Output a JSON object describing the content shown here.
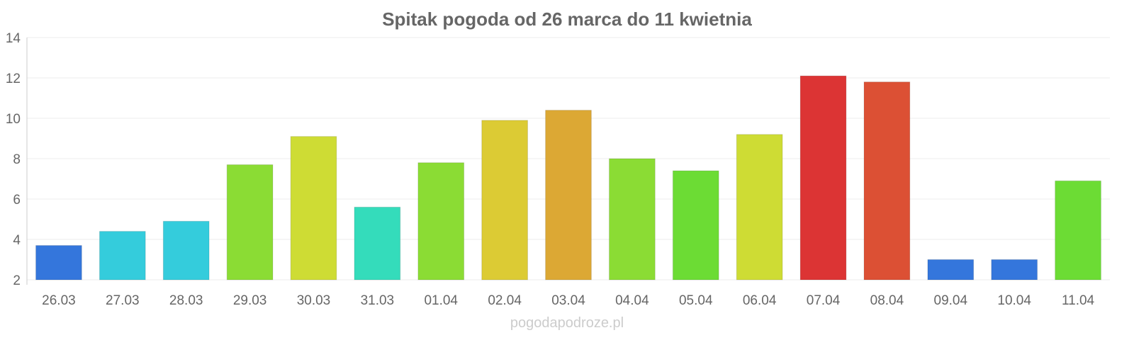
{
  "chart_data": {
    "type": "bar",
    "title": "Spitak pogoda od 26 marca do 11 kwietnia",
    "xlabel": "",
    "ylabel": "",
    "ylim": [
      2,
      14
    ],
    "yticks": [
      2,
      4,
      6,
      8,
      10,
      12,
      14
    ],
    "grid": true,
    "categories": [
      "26.03",
      "27.03",
      "28.03",
      "29.03",
      "30.03",
      "31.03",
      "01.04",
      "02.04",
      "03.04",
      "04.04",
      "05.04",
      "06.04",
      "07.04",
      "08.04",
      "09.04",
      "10.04",
      "11.04"
    ],
    "values": [
      3.7,
      4.4,
      4.9,
      7.7,
      9.1,
      5.6,
      7.8,
      9.9,
      10.4,
      8.0,
      7.4,
      9.2,
      12.1,
      11.8,
      3.0,
      3.0,
      6.9
    ],
    "colors": [
      "#3476dc",
      "#34ccdc",
      "#34ccdc",
      "#8bdc34",
      "#cedc34",
      "#34dcbb",
      "#8bdc34",
      "#dccb34",
      "#dca834",
      "#8bdc34",
      "#6cdc34",
      "#cedc34",
      "#dc3434",
      "#dc5034",
      "#3476dc",
      "#3476dc",
      "#6cdc34"
    ]
  },
  "credit": "pogodapodroze.pl"
}
